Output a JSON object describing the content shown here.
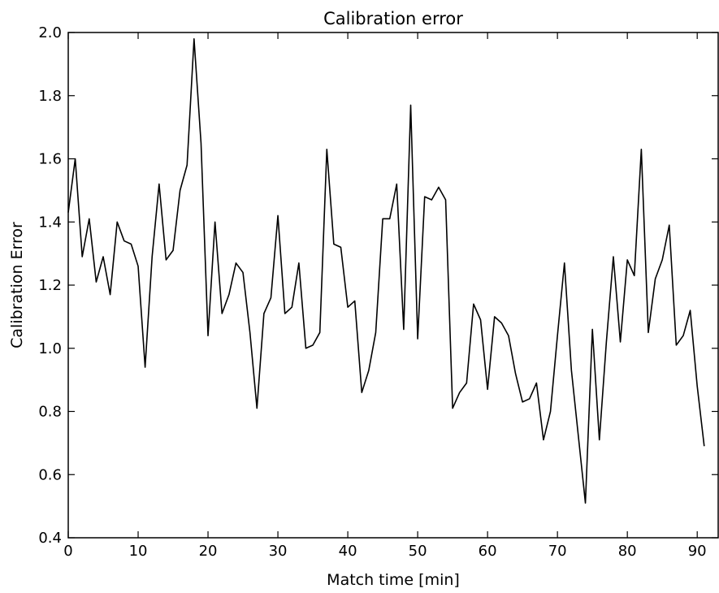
{
  "chart_data": {
    "type": "line",
    "title": "Calibration error",
    "xlabel": "Match time [min]",
    "ylabel": "Calibration Error",
    "xlim": [
      0,
      93
    ],
    "ylim": [
      0.4,
      2.0
    ],
    "grid": false,
    "x_ticks": [
      0,
      10,
      20,
      30,
      40,
      50,
      60,
      70,
      80,
      90
    ],
    "x_tick_labels": [
      "0",
      "10",
      "20",
      "30",
      "40",
      "50",
      "60",
      "70",
      "80",
      "90"
    ],
    "y_ticks": [
      0.4,
      0.6,
      0.8,
      1.0,
      1.2,
      1.4,
      1.6,
      1.8,
      2.0
    ],
    "y_tick_labels": [
      "0.4",
      "0.6",
      "0.8",
      "1.0",
      "1.2",
      "1.4",
      "1.6",
      "1.8",
      "2.0"
    ],
    "line_color": "#000000",
    "series": [
      {
        "x": [
          0,
          1,
          2,
          3,
          4,
          5,
          6,
          7,
          8,
          9,
          10,
          11,
          12,
          13,
          14,
          15,
          16,
          17,
          18,
          19,
          20,
          21,
          22,
          23,
          24,
          25,
          26,
          27,
          28,
          29,
          30,
          31,
          32,
          33,
          34,
          35,
          36,
          37,
          38,
          39,
          40,
          41,
          42,
          43,
          44,
          45,
          46,
          47,
          48,
          49,
          50,
          51,
          52,
          53,
          54,
          55,
          56,
          57,
          58,
          59,
          60,
          61,
          62,
          63,
          64,
          65,
          66,
          67,
          68,
          69,
          70,
          71,
          72,
          73,
          74,
          75,
          76,
          77,
          78,
          79,
          80,
          81,
          82,
          83,
          84,
          85,
          86,
          87,
          88,
          89,
          90,
          91
        ],
        "values": [
          1.43,
          1.6,
          1.29,
          1.41,
          1.21,
          1.29,
          1.17,
          1.4,
          1.34,
          1.33,
          1.26,
          0.94,
          1.29,
          1.52,
          1.28,
          1.31,
          1.5,
          1.58,
          1.98,
          1.65,
          1.04,
          1.4,
          1.11,
          1.17,
          1.27,
          1.24,
          1.05,
          0.81,
          1.11,
          1.16,
          1.42,
          1.11,
          1.13,
          1.27,
          1.0,
          1.01,
          1.05,
          1.63,
          1.33,
          1.32,
          1.13,
          1.15,
          0.86,
          0.93,
          1.05,
          1.41,
          1.41,
          1.52,
          1.06,
          1.77,
          1.03,
          1.48,
          1.47,
          1.51,
          1.47,
          0.81,
          0.86,
          0.89,
          1.14,
          1.09,
          0.87,
          1.1,
          1.08,
          1.04,
          0.92,
          0.83,
          0.84,
          0.89,
          0.71,
          0.8,
          1.04,
          1.27,
          0.93,
          0.72,
          0.51,
          1.06,
          0.71,
          1.02,
          1.29,
          1.02,
          1.28,
          1.23,
          1.63,
          1.05,
          1.22,
          1.28,
          1.39,
          1.01,
          1.04,
          1.12,
          0.88,
          0.69
        ]
      }
    ]
  }
}
